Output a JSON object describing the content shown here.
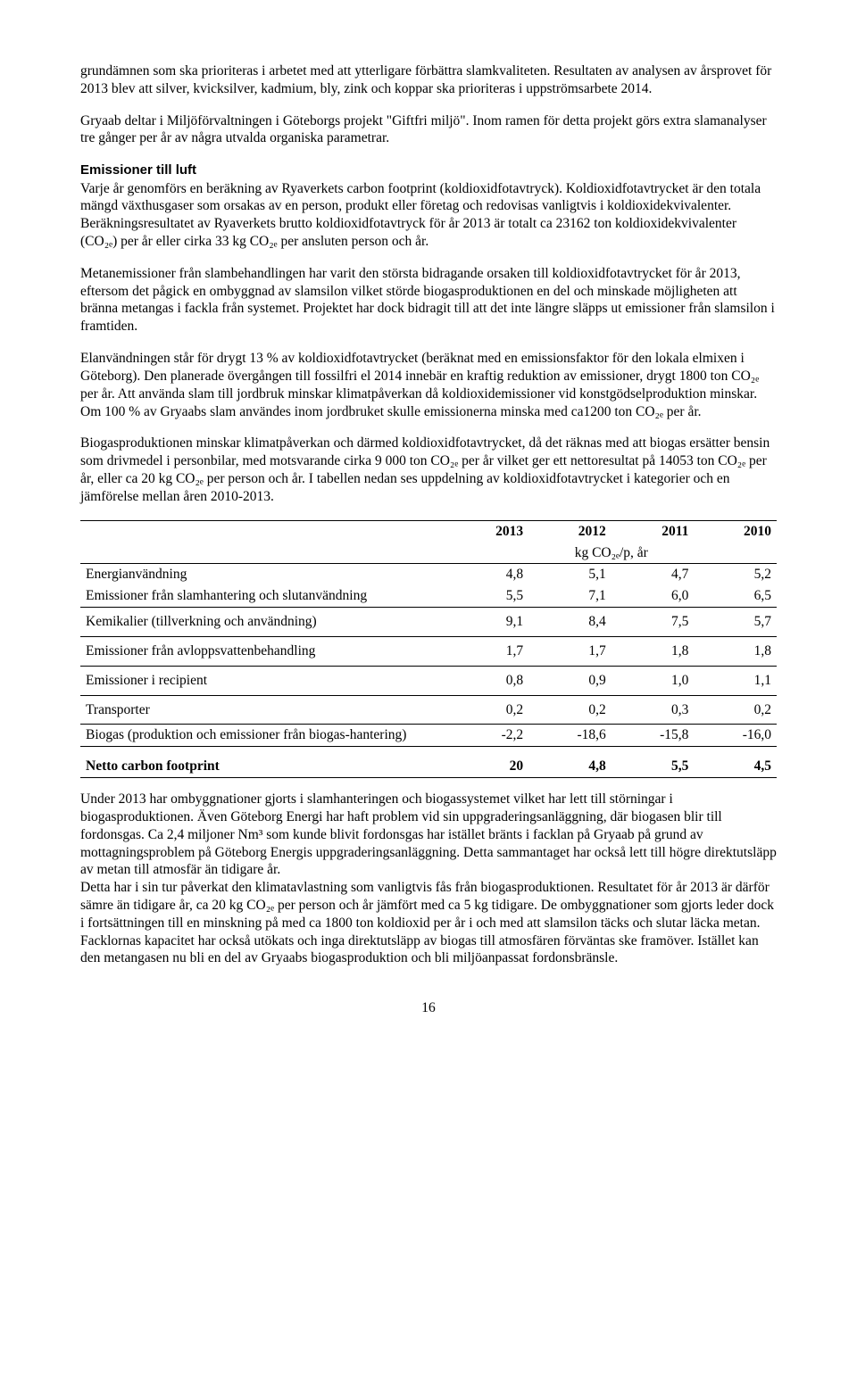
{
  "paragraphs": {
    "p1": "grundämnen som ska prioriteras i arbetet med att ytterligare förbättra slamkvaliteten. Resultaten av analysen av årsprovet för 2013 blev att silver, kvicksilver, kadmium, bly, zink och koppar ska prioriteras i uppströmsarbete 2014.",
    "p2": "Gryaab deltar i Miljöförvaltningen i Göteborgs projekt \"Giftfri miljö\". Inom ramen för detta projekt görs extra slamanalyser tre gånger per år av några utvalda organiska parametrar.",
    "p3_heading": "Emissioner till luft",
    "p3": "Varje år genomförs en beräkning av Ryaverkets carbon footprint (koldioxidfotavtryck). Koldioxidfotavtrycket är den totala mängd växthusgaser som orsakas av en person, produkt eller företag och redovisas vanligtvis i koldioxidekvivalenter. Beräkningsresultatet av Ryaverkets brutto koldioxidfotavtryck för år 2013 är totalt ca 23162 ton koldioxidekvivalenter (CO₂ₑ) per år eller cirka 33 kg CO₂ₑ per ansluten person och år.",
    "p4": "Metanemissioner från slambehandlingen har varit den största bidragande orsaken till koldioxidfotavtrycket för år 2013, eftersom det pågick en ombyggnad av slamsilon vilket störde biogasproduktionen en del och minskade möjligheten att bränna metangas i fackla från systemet. Projektet har dock bidragit till att det inte längre släpps ut emissioner från slamsilon i framtiden.",
    "p5": "Elanvändningen står för drygt 13 % av koldioxidfotavtrycket (beräknat med en emissionsfaktor för den lokala elmixen i Göteborg). Den planerade övergången till fossilfri el 2014 innebär en kraftig reduktion av emissioner, drygt 1800 ton CO₂ₑ per år. Att använda slam till jordbruk minskar klimatpåverkan då koldioxidemissioner vid konstgödselproduktion minskar. Om 100 % av Gryaabs slam användes inom jordbruket skulle emissionerna minska med ca1200 ton CO₂ₑ per år.",
    "p6": "Biogasproduktionen minskar klimatpåverkan och därmed koldioxidfotavtrycket, då det räknas med att biogas ersätter bensin som drivmedel i personbilar, med motsvarande cirka 9 000 ton CO₂ₑ per år vilket ger ett nettoresultat på 14053 ton CO₂ₑ per år, eller ca 20 kg CO₂ₑ per person och år. I tabellen nedan ses uppdelning av koldioxidfotavtrycket i kategorier och en jämförelse mellan åren 2010-2013.",
    "p7": "Under 2013 har ombyggnationer gjorts i slamhanteringen och biogassystemet vilket har lett till störningar i biogasproduktionen. Även Göteborg Energi har haft problem vid sin uppgraderingsanläggning, där biogasen blir till fordonsgas. Ca 2,4 miljoner Nm³ som kunde blivit fordonsgas har istället bränts i facklan på Gryaab på grund av mottagningsproblem på Göteborg Energis uppgraderingsanläggning. Detta sammantaget har också lett till högre direktutsläpp av metan till atmosfär än tidigare år.",
    "p8": "Detta har i sin tur påverkat den klimatavlastning som vanligtvis fås från biogasproduktionen. Resultatet för år 2013 är därför sämre än tidigare år, ca 20 kg CO₂ₑ per person och år jämfört med ca 5 kg tidigare. De ombyggnationer som gjorts leder dock i fortsättningen till en minskning på med ca 1800 ton koldioxid per år i och med att slamsilon täcks och slutar läcka metan. Facklornas kapacitet har också utökats och inga direktutsläpp av biogas till atmosfären förväntas ske framöver. Istället kan den metangasen nu bli en del av Gryaabs biogasproduktion och bli miljöanpassat fordonsbränsle."
  },
  "table": {
    "header_years": [
      "2013",
      "2012",
      "2011",
      "2010"
    ],
    "unit_label": "kg CO₂ₑ/p, år",
    "rows": [
      {
        "label": "Energianvändning",
        "values": [
          "4,8",
          "5,1",
          "4,7",
          "5,2"
        ]
      },
      {
        "label": "Emissioner från slamhantering och slutanvändning",
        "values": [
          "5,5",
          "7,1",
          "6,0",
          "6,5"
        ]
      },
      {
        "label": "Kemikalier (tillverkning och användning)",
        "values": [
          "9,1",
          "8,4",
          "7,5",
          "5,7"
        ]
      },
      {
        "label": "Emissioner från avloppsvattenbehandling",
        "values": [
          "1,7",
          "1,7",
          "1,8",
          "1,8"
        ]
      },
      {
        "label": "Emissioner i recipient",
        "values": [
          "0,8",
          "0,9",
          "1,0",
          "1,1"
        ]
      },
      {
        "label": "Transporter",
        "values": [
          "0,2",
          "0,2",
          "0,3",
          "0,2"
        ]
      },
      {
        "label": "Biogas (produktion och emissioner från biogas-hantering)",
        "values": [
          "-2,2",
          "-18,6",
          "-15,8",
          "-16,0"
        ]
      }
    ],
    "footprint_label": "Netto carbon footprint",
    "footprint_values": [
      "20",
      "4,8",
      "5,5",
      "4,5"
    ]
  },
  "page_number": "16"
}
